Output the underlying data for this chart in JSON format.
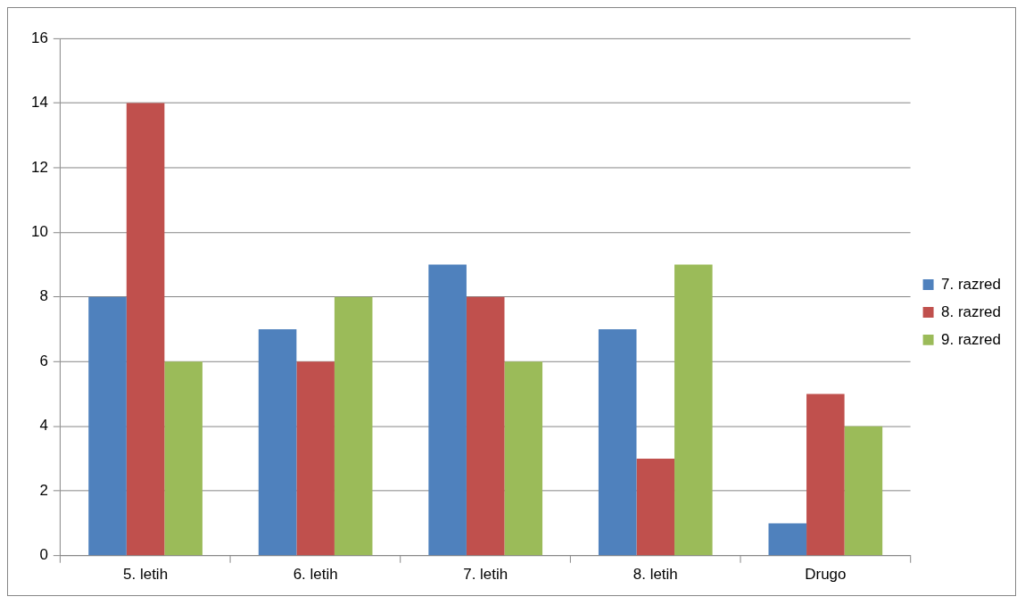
{
  "chart_data": {
    "type": "bar",
    "categories": [
      "5. letih",
      "6. letih",
      "7. letih",
      "8. letih",
      "Drugo"
    ],
    "series": [
      {
        "name": "7. razred",
        "color": "#4f81bd",
        "values": [
          8,
          7,
          9,
          7,
          1
        ]
      },
      {
        "name": "8. razred",
        "color": "#c0504d",
        "values": [
          14,
          6,
          8,
          3,
          5
        ]
      },
      {
        "name": "9. razred",
        "color": "#9bbb59",
        "values": [
          6,
          8,
          6,
          9,
          4
        ]
      }
    ],
    "ylim": [
      0,
      16
    ],
    "yticks": [
      0,
      2,
      4,
      6,
      8,
      10,
      12,
      14,
      16
    ],
    "grid": "y",
    "legend": "right"
  }
}
